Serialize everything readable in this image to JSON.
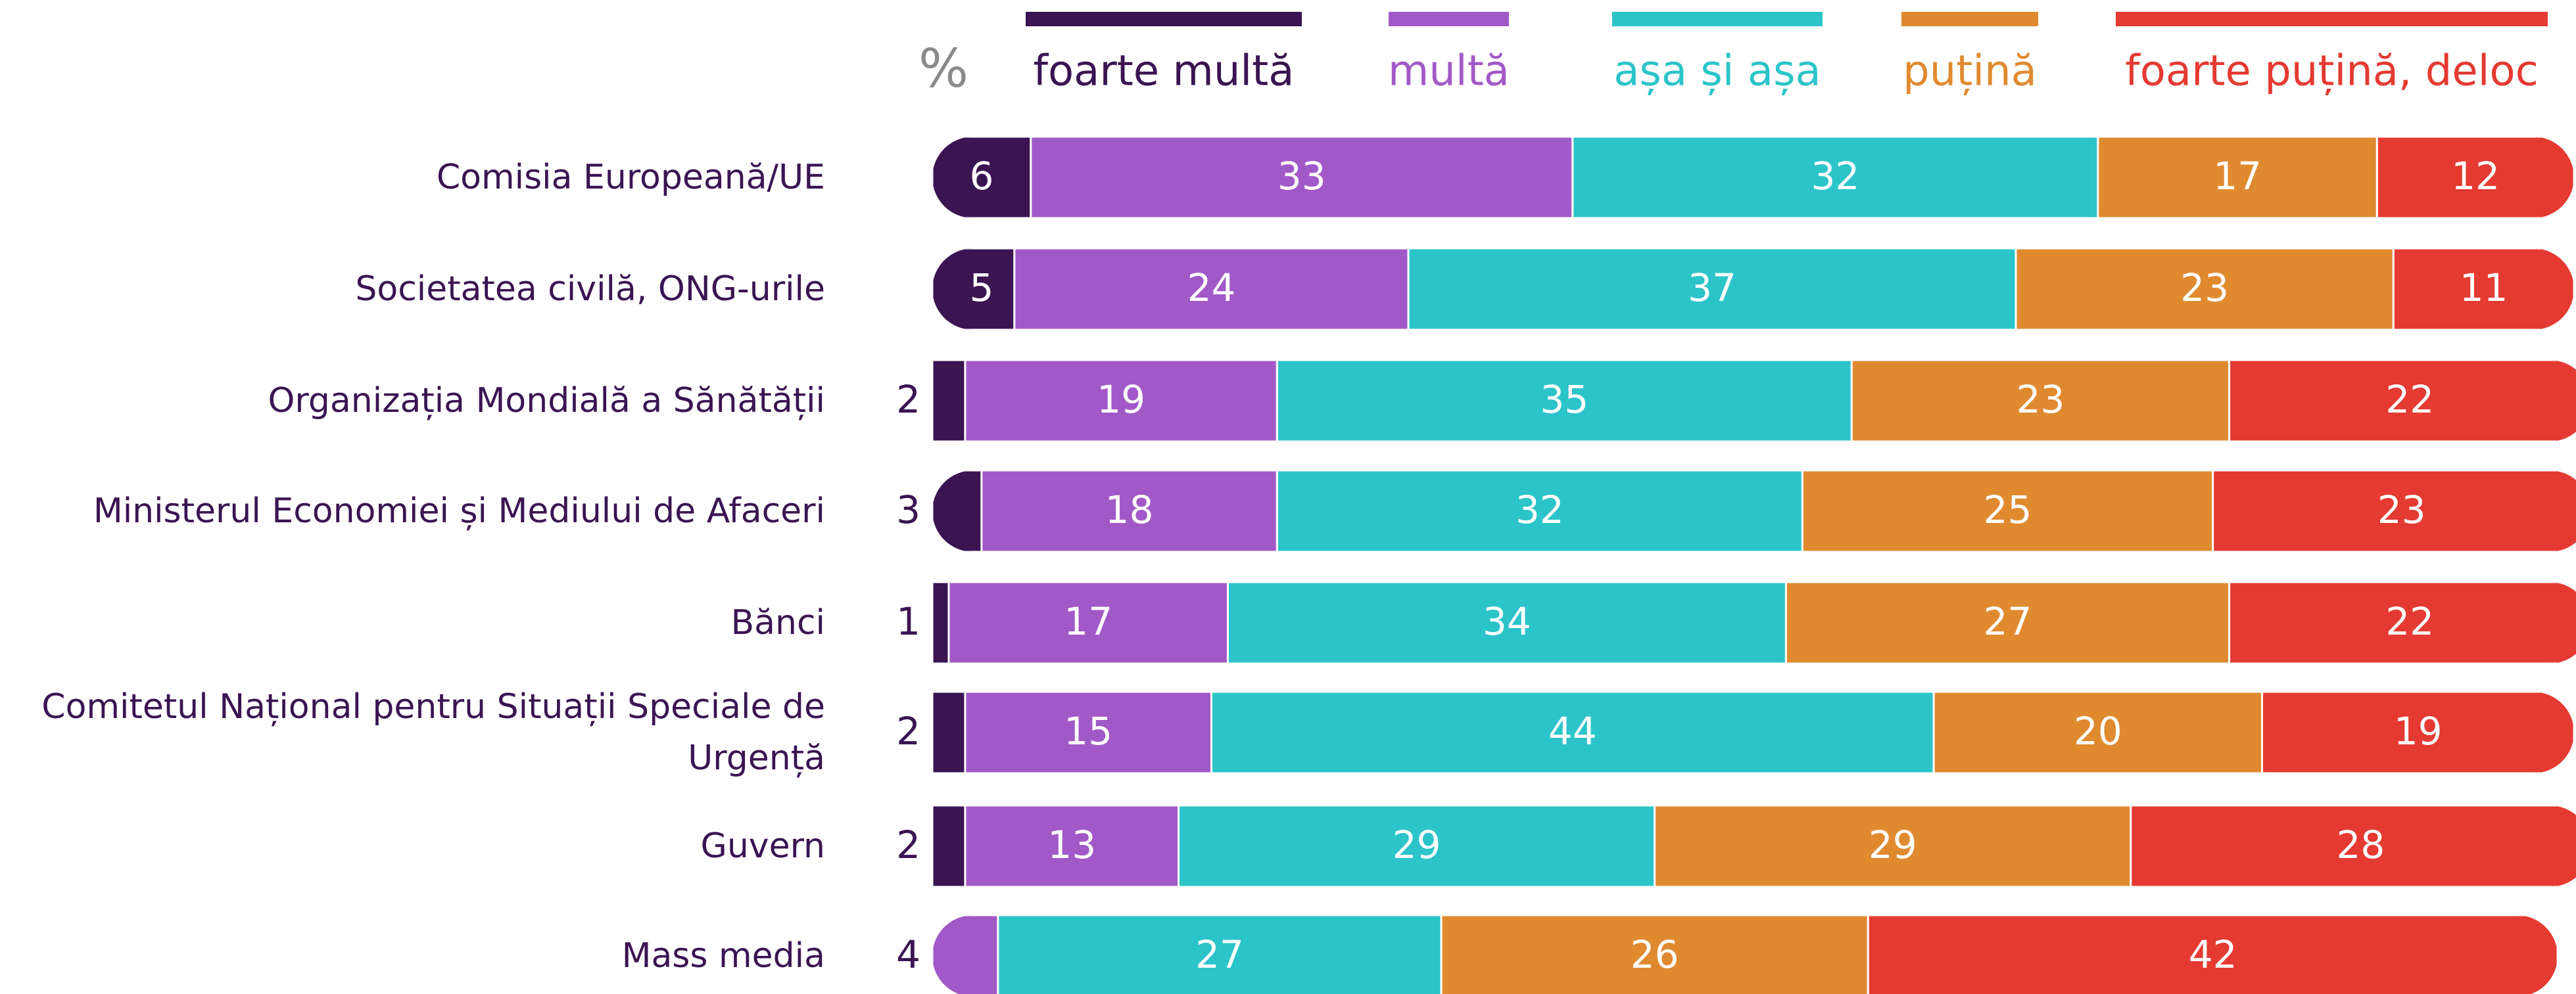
{
  "chart_data": {
    "type": "bar",
    "orientation": "horizontal",
    "stacked": true,
    "unit_label": "%",
    "categories": [
      "Comisia Europeană/UE",
      "Societatea civilă, ONG-urile",
      "Organizația Mondială a Sănătății",
      "Ministerul Economiei și Mediului de Afaceri",
      "Bănci",
      "Comitetul Național pentru Situații Speciale de Urgență",
      "Guvern",
      "Mass media"
    ],
    "series": [
      {
        "name": "foarte multă",
        "color": "#3b1452",
        "values": [
          6,
          5,
          2,
          3,
          1,
          2,
          2,
          null
        ]
      },
      {
        "name": "multă",
        "color": "#a259c8",
        "values": [
          33,
          24,
          19,
          18,
          17,
          15,
          13,
          4
        ]
      },
      {
        "name": "așa și așa",
        "color": "#2bc4c9",
        "values": [
          32,
          37,
          35,
          32,
          34,
          44,
          29,
          27
        ]
      },
      {
        "name": "puțină",
        "color": "#e08a30",
        "values": [
          17,
          23,
          23,
          25,
          27,
          20,
          29,
          26
        ]
      },
      {
        "name": "foarte puțină, deloc",
        "color": "#e43a31",
        "values": [
          12,
          11,
          22,
          23,
          22,
          19,
          28,
          42
        ]
      }
    ],
    "xlim": [
      0,
      100
    ],
    "legend": "top"
  }
}
